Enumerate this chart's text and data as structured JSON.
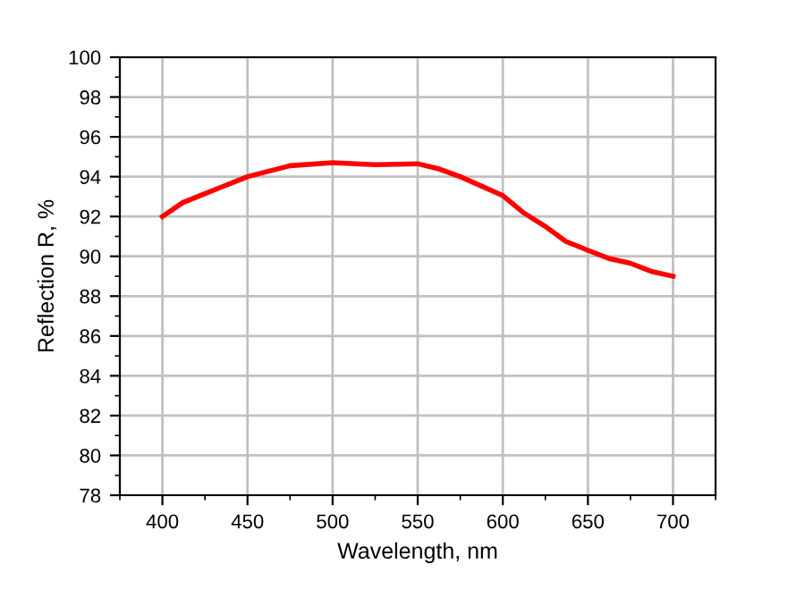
{
  "chart_data": {
    "type": "line",
    "xlabel": "Wavelength, nm",
    "ylabel": "Reflection R, %",
    "x": [
      400,
      412,
      425,
      450,
      475,
      500,
      525,
      550,
      562,
      575,
      600,
      612,
      625,
      637,
      650,
      662,
      675,
      687,
      700
    ],
    "series": [
      {
        "color": "#ff0000",
        "values": [
          92.0,
          92.7,
          93.15,
          94.0,
          94.55,
          94.7,
          94.6,
          94.65,
          94.4,
          94.0,
          93.05,
          92.2,
          91.5,
          90.75,
          90.3,
          89.9,
          89.65,
          89.25,
          89.0
        ]
      }
    ],
    "xlim": [
      375,
      725
    ],
    "xticks": [
      400,
      450,
      500,
      550,
      600,
      650,
      700
    ],
    "ylim": [
      78,
      100
    ],
    "yticks": [
      78,
      80,
      82,
      84,
      86,
      88,
      90,
      92,
      94,
      96,
      98,
      100
    ],
    "grid": true,
    "legend": false,
    "marker": "none",
    "line_style": "solid"
  }
}
